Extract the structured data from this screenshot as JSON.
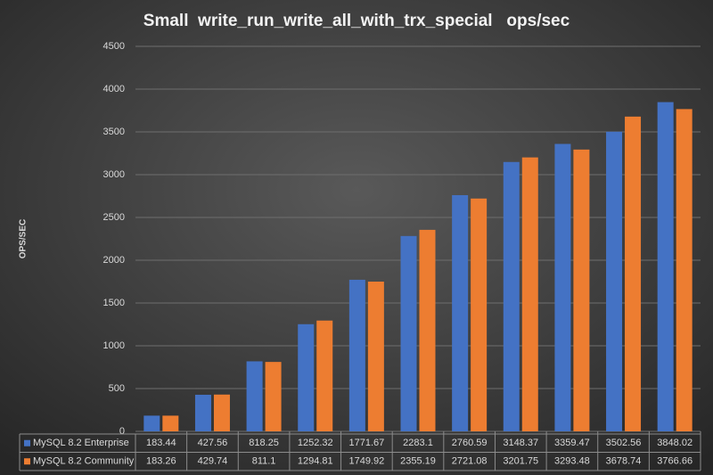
{
  "chart_data": {
    "type": "bar",
    "title": "Small  write_run_write_all_with_trx_special   ops/sec",
    "y_label": "OPS/SEC",
    "series": [
      {
        "name": "MySQL 8.2 Enterprise",
        "color": "#4472c4",
        "values": [
          183.44,
          427.56,
          818.25,
          1252.32,
          1771.67,
          2283.1,
          2760.59,
          3148.37,
          3359.47,
          3502.56,
          3848.02
        ]
      },
      {
        "name": "MySQL 8.2 Community",
        "color": "#ed7d31",
        "values": [
          183.26,
          429.74,
          811.1,
          1294.81,
          1749.92,
          2355.19,
          2721.08,
          3201.75,
          3293.48,
          3678.74,
          3766.66
        ]
      }
    ],
    "ylim": [
      0,
      4500
    ],
    "yticks": [
      0,
      500,
      1000,
      1500,
      2000,
      2500,
      3000,
      3500,
      4000,
      4500
    ],
    "grid": true
  }
}
